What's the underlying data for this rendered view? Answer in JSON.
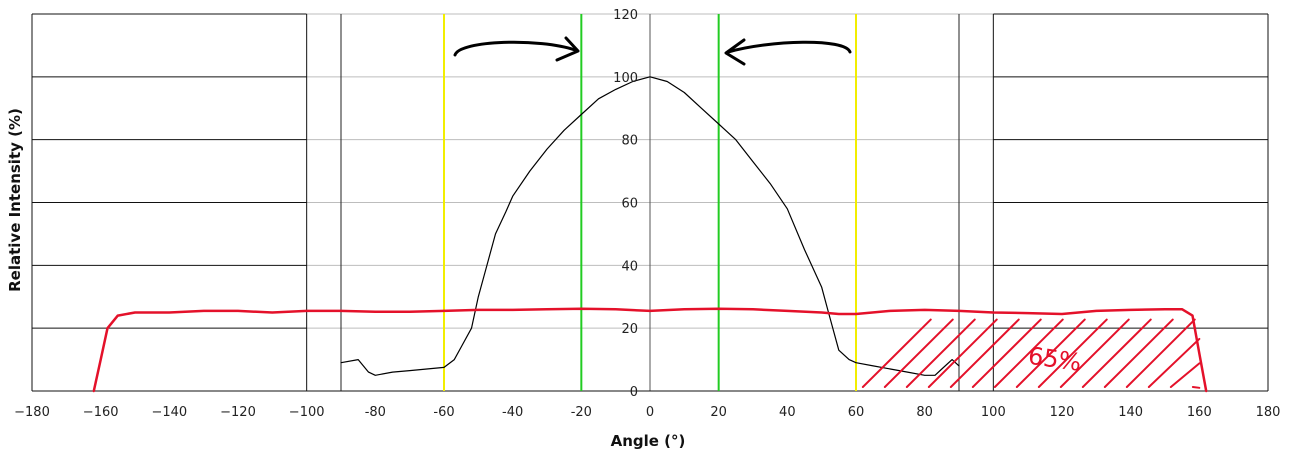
{
  "chart_data": {
    "type": "line",
    "xlabel": "Angle (°)",
    "ylabel": "Relative Intensity (%)",
    "xlim": [
      -180,
      180
    ],
    "ylim": [
      0,
      120
    ],
    "grid": true,
    "x_ticks": [
      "−180",
      "−160",
      "−140",
      "−120",
      "−100",
      "-80",
      "-60",
      "-40",
      "-20",
      "0",
      "20",
      "40",
      "60",
      "80",
      "100",
      "120",
      "140",
      "160",
      "180"
    ],
    "y_ticks": [
      "0",
      "20",
      "40",
      "60",
      "80",
      "100",
      "120"
    ],
    "series": [
      {
        "color": "#000000",
        "x": [
          -90,
          -85,
          -82,
          -80,
          -75,
          -70,
          -65,
          -60,
          -57,
          -55,
          -52,
          -50,
          -48,
          -45,
          -42,
          -40,
          -35,
          -30,
          -25,
          -20,
          -15,
          -10,
          -5,
          0,
          5,
          10,
          15,
          20,
          25,
          30,
          35,
          40,
          45,
          50,
          52,
          55,
          58,
          60,
          65,
          70,
          75,
          80,
          83,
          85,
          88,
          90
        ],
        "y": [
          9,
          10,
          6,
          5,
          6,
          6.5,
          7,
          7.5,
          10,
          14,
          20,
          30,
          38,
          50,
          57,
          62,
          70,
          77,
          83,
          88,
          93,
          96,
          98.5,
          100,
          98.5,
          95,
          90,
          85,
          80,
          73,
          66,
          58,
          45,
          33,
          25,
          13,
          10,
          9,
          8,
          7,
          6,
          5,
          5,
          7,
          10,
          8
        ]
      },
      {
        "color": "#e4112a",
        "style": "hand-drawn",
        "x": [
          -162,
          -160,
          -158,
          -155,
          -150,
          -140,
          -130,
          -120,
          -110,
          -100,
          -90,
          -80,
          -70,
          -60,
          -50,
          -40,
          -30,
          -20,
          -10,
          0,
          10,
          20,
          30,
          40,
          50,
          55,
          60,
          70,
          80,
          90,
          100,
          110,
          120,
          130,
          140,
          150,
          155,
          158,
          160,
          162
        ],
        "y": [
          0,
          10,
          20,
          24,
          25,
          25,
          25.5,
          25.5,
          25,
          25.5,
          25.5,
          25.2,
          25.2,
          25.5,
          25.8,
          25.8,
          26,
          26.2,
          26,
          25.5,
          26,
          26.2,
          26,
          25.5,
          25,
          24.5,
          24.5,
          25.5,
          25.8,
          25.5,
          25,
          24.8,
          24.5,
          25.5,
          25.8,
          26,
          26,
          24,
          12,
          0
        ]
      }
    ],
    "reference_lines": [
      {
        "x": -60,
        "color": "#f2ee00"
      },
      {
        "x": 60,
        "color": "#f2ee00"
      },
      {
        "x": -20,
        "color": "#22cc22"
      },
      {
        "x": 20,
        "color": "#22cc22"
      }
    ],
    "annotations": [
      {
        "text": "65%",
        "color": "#e4112a"
      }
    ]
  }
}
